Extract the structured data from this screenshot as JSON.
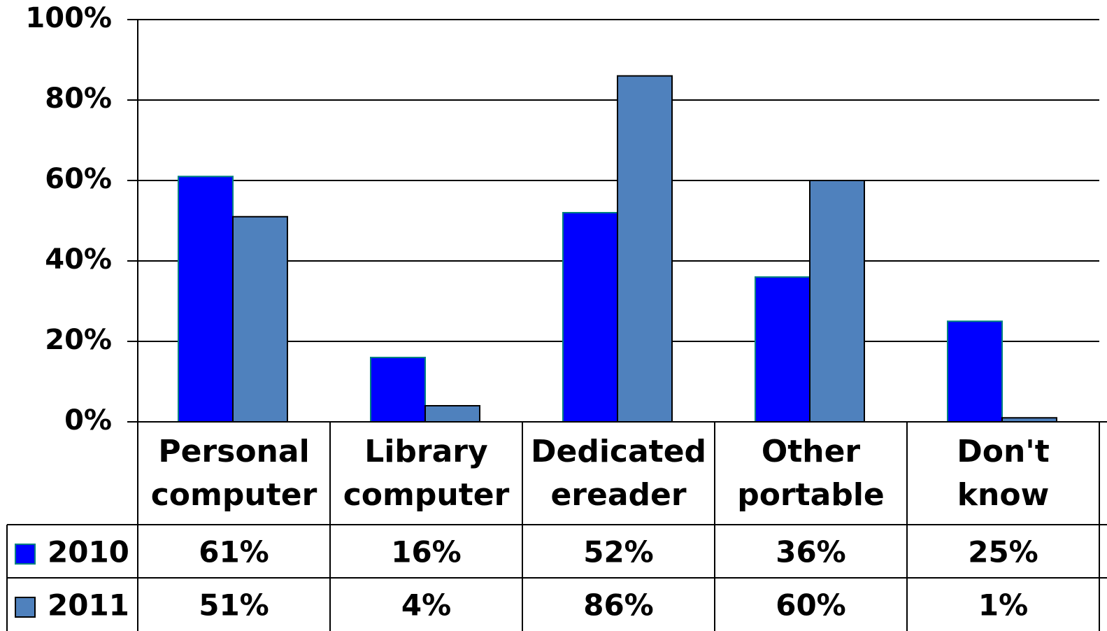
{
  "chart_data": {
    "type": "bar",
    "categories": [
      "Personal computer",
      "Library computer",
      "Dedicated ereader",
      "Other portable",
      "Don't know"
    ],
    "series": [
      {
        "name": "2010",
        "color": "#0000ff",
        "values": [
          61,
          16,
          52,
          36,
          25
        ],
        "value_labels": [
          "61%",
          "16%",
          "52%",
          "36%",
          "25%"
        ]
      },
      {
        "name": "2011",
        "color": "#4f81bd",
        "values": [
          51,
          4,
          86,
          60,
          1
        ],
        "value_labels": [
          "51%",
          "4%",
          "86%",
          "60%",
          "1%"
        ]
      }
    ],
    "ylim": [
      0,
      100
    ],
    "yticks": [
      {
        "value": 0,
        "label": "0%"
      },
      {
        "value": 20,
        "label": "20%"
      },
      {
        "value": 40,
        "label": "40%"
      },
      {
        "value": 60,
        "label": "60%"
      },
      {
        "value": 80,
        "label": "80%"
      },
      {
        "value": 100,
        "label": "100%"
      }
    ],
    "grid": true
  }
}
